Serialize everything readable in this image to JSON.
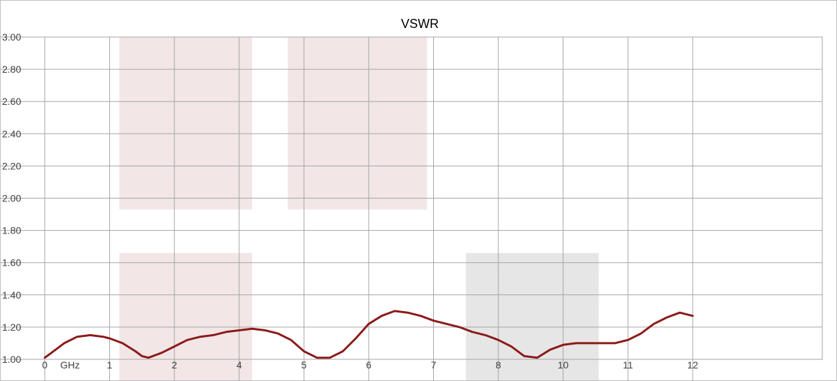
{
  "chart_data": {
    "type": "line",
    "title": "VSWR",
    "xlabel": "",
    "ylabel": "",
    "xlim": [
      0,
      12
    ],
    "ylim": [
      1.0,
      3.0
    ],
    "grid": true,
    "legend": "none",
    "x_ticks": [
      {
        "value": 0,
        "label": "0"
      },
      {
        "value": 1,
        "label": "1"
      },
      {
        "value": 2,
        "label": "2"
      },
      {
        "value": 3,
        "label": "4"
      },
      {
        "value": 4,
        "label": "5"
      },
      {
        "value": 5,
        "label": "6"
      },
      {
        "value": 6,
        "label": "7"
      },
      {
        "value": 7,
        "label": "8"
      },
      {
        "value": 8,
        "label": "10"
      },
      {
        "value": 9,
        "label": "11"
      },
      {
        "value": 10,
        "label": "12"
      }
    ],
    "x_unit_label": {
      "value": 0,
      "label": "GHz"
    },
    "y_ticks": [
      "1.00",
      "1.20",
      "1.40",
      "1.60",
      "1.80",
      "2.00",
      "2.20",
      "2.40",
      "2.60",
      "2.80",
      "3.00"
    ],
    "shaded_regions": [
      {
        "x": [
          1.15,
          3.2
        ],
        "y": [
          1.93,
          3.0
        ],
        "color": "#f2e6e6"
      },
      {
        "x": [
          3.75,
          5.9
        ],
        "y": [
          1.93,
          3.0
        ],
        "color": "#f2e6e6"
      },
      {
        "x": [
          1.15,
          3.2
        ],
        "y": [
          1.0,
          1.66
        ],
        "color": "#f2e6e6"
      },
      {
        "x": [
          6.5,
          8.55
        ],
        "y": [
          1.0,
          1.66
        ],
        "color": "#e6e6e6"
      }
    ],
    "series": [
      {
        "color": "#8b1a1a",
        "x": [
          0,
          0.1,
          0.3,
          0.5,
          0.7,
          0.9,
          1.0,
          1.2,
          1.4,
          1.5,
          1.6,
          1.8,
          2.0,
          2.2,
          2.4,
          2.6,
          2.8,
          3.0,
          3.2,
          3.4,
          3.6,
          3.8,
          4.0,
          4.2,
          4.4,
          4.6,
          4.8,
          5.0,
          5.2,
          5.4,
          5.6,
          5.8,
          6.0,
          6.2,
          6.4,
          6.6,
          6.8,
          7.0,
          7.2,
          7.4,
          7.6,
          7.8,
          8.0,
          8.2,
          8.4,
          8.6,
          8.8,
          9.0,
          9.2,
          9.4,
          9.6,
          9.8,
          10.0
        ],
        "y": [
          1.01,
          1.04,
          1.1,
          1.14,
          1.15,
          1.14,
          1.13,
          1.1,
          1.05,
          1.02,
          1.01,
          1.04,
          1.08,
          1.12,
          1.14,
          1.15,
          1.17,
          1.18,
          1.19,
          1.18,
          1.16,
          1.12,
          1.05,
          1.01,
          1.01,
          1.05,
          1.13,
          1.22,
          1.27,
          1.3,
          1.29,
          1.27,
          1.24,
          1.22,
          1.2,
          1.17,
          1.15,
          1.12,
          1.08,
          1.02,
          1.01,
          1.06,
          1.09,
          1.1,
          1.1,
          1.1,
          1.1,
          1.12,
          1.16,
          1.22,
          1.26,
          1.29,
          1.27
        ]
      }
    ]
  }
}
